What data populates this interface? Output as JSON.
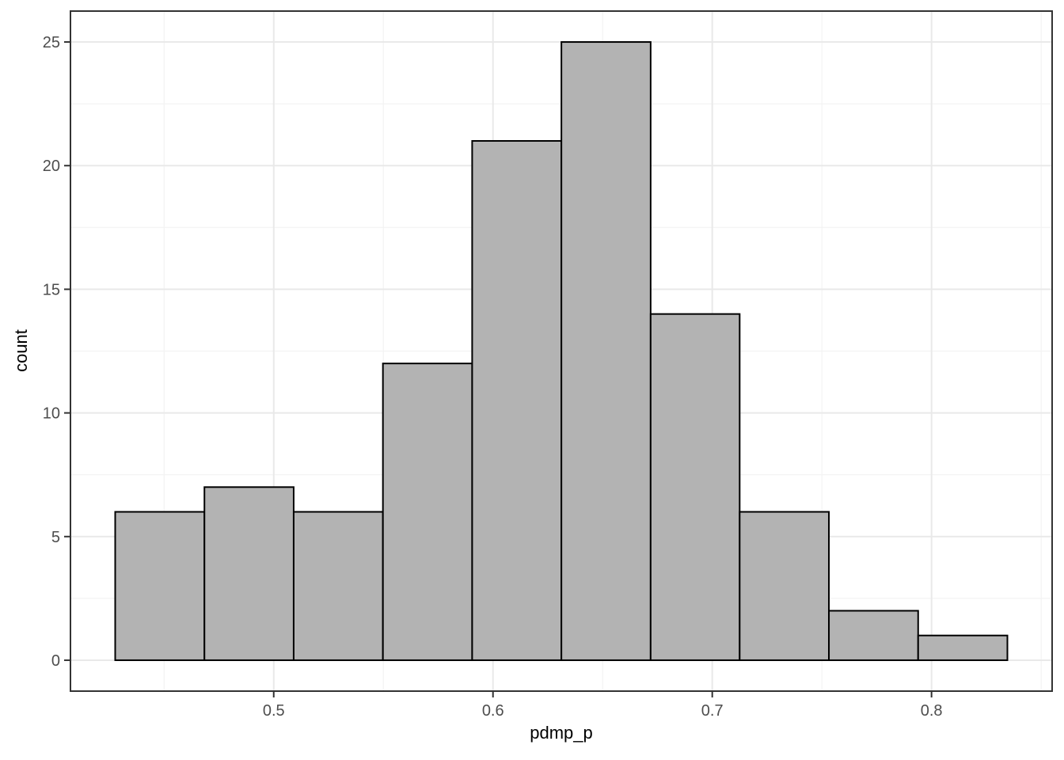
{
  "chart_data": {
    "type": "histogram",
    "title": "",
    "xlabel": "pdmp_p",
    "ylabel": "count",
    "bin_edges": [
      0.4277,
      0.4684,
      0.5091,
      0.5498,
      0.5905,
      0.6312,
      0.6719,
      0.7125,
      0.7532,
      0.7939,
      0.8346
    ],
    "counts": [
      6,
      7,
      6,
      12,
      21,
      25,
      14,
      6,
      2,
      1
    ],
    "x_ticks": [
      0.5,
      0.6,
      0.7,
      0.8
    ],
    "x_tick_labels": [
      "0.5",
      "0.6",
      "0.7",
      "0.8"
    ],
    "x_minor_ticks": [
      0.45,
      0.55,
      0.65,
      0.75,
      0.85
    ],
    "y_ticks": [
      0,
      5,
      10,
      15,
      20,
      25
    ],
    "y_tick_labels": [
      "0",
      "5",
      "10",
      "15",
      "20",
      "25"
    ],
    "y_minor_ticks": [
      2.5,
      7.5,
      12.5,
      17.5,
      22.5
    ],
    "xlim": [
      0.4073,
      0.855
    ],
    "ylim": [
      -1.25,
      26.25
    ],
    "grid": true,
    "legend": false,
    "colors": {
      "background": "#ffffff",
      "bar_fill": "#b3b3b3",
      "bar_stroke": "#000000",
      "panel_border": "#333333",
      "grid_major": "#e9e9e9",
      "grid_minor": "#f3f3f3",
      "tick_mark": "#333333",
      "tick_label": "#4d4d4d",
      "axis_title": "#000000"
    }
  }
}
